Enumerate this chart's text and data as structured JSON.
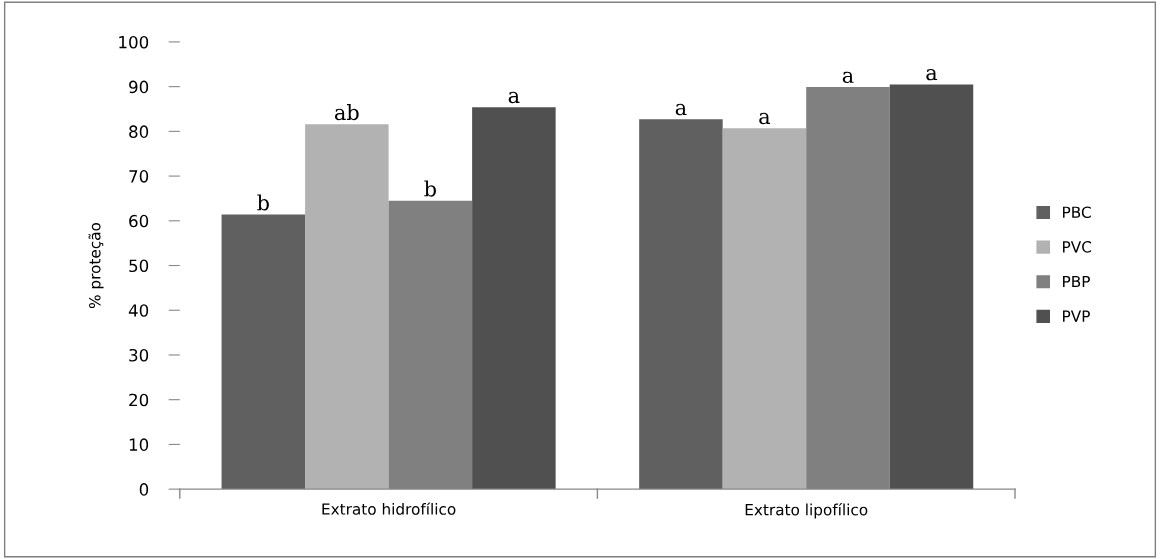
{
  "chart_data": {
    "type": "bar",
    "ylabel": "% proteção",
    "categories": [
      "Extrato hidrofílico",
      "Extrato lipofílico"
    ],
    "series": [
      {
        "name": "PBC",
        "color": "#606060",
        "values": [
          61.4,
          82.7
        ]
      },
      {
        "name": "PVC",
        "color": "#b2b2b2",
        "values": [
          81.6,
          80.7
        ]
      },
      {
        "name": "PBP",
        "color": "#808080",
        "values": [
          64.5,
          89.9
        ]
      },
      {
        "name": "PVP",
        "color": "#505050",
        "values": [
          85.4,
          90.5
        ]
      }
    ],
    "ylim": [
      0,
      100
    ],
    "yticks": [
      0,
      10,
      20,
      30,
      40,
      50,
      60,
      70,
      80,
      90,
      100
    ],
    "grid": false,
    "legend": "right",
    "annotations": [
      "b",
      "ab",
      "b",
      "a",
      "a",
      "a",
      "a",
      "a"
    ]
  }
}
